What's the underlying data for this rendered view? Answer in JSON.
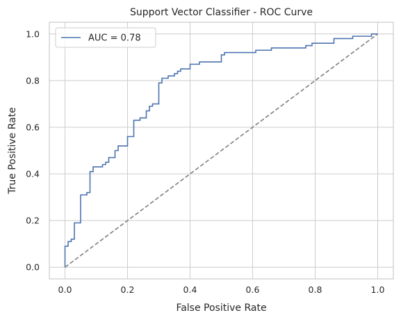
{
  "chart_data": {
    "type": "line",
    "title": "Support Vector Classifier - ROC Curve",
    "xlabel": "False Positive Rate",
    "ylabel": "True Positive Rate",
    "xlim": [
      -0.05,
      1.05
    ],
    "ylim": [
      -0.05,
      1.05
    ],
    "xticks": [
      0.0,
      0.2,
      0.4,
      0.6,
      0.8,
      1.0
    ],
    "xtick_labels": [
      "0.0",
      "0.2",
      "0.4",
      "0.6",
      "0.8",
      "1.0"
    ],
    "yticks": [
      0.0,
      0.2,
      0.4,
      0.6,
      0.8,
      1.0
    ],
    "ytick_labels": [
      "0.0",
      "0.2",
      "0.4",
      "0.6",
      "0.8",
      "1.0"
    ],
    "grid": true,
    "legend_position": "top-left",
    "series": [
      {
        "name": "AUC = 0.78",
        "color": "#4c72b0",
        "style": "solid",
        "points": [
          [
            0.0,
            0.0
          ],
          [
            0.0,
            0.09
          ],
          [
            0.01,
            0.09
          ],
          [
            0.01,
            0.11
          ],
          [
            0.02,
            0.11
          ],
          [
            0.02,
            0.12
          ],
          [
            0.03,
            0.12
          ],
          [
            0.03,
            0.19
          ],
          [
            0.05,
            0.19
          ],
          [
            0.05,
            0.31
          ],
          [
            0.07,
            0.31
          ],
          [
            0.07,
            0.32
          ],
          [
            0.08,
            0.32
          ],
          [
            0.08,
            0.41
          ],
          [
            0.09,
            0.41
          ],
          [
            0.09,
            0.43
          ],
          [
            0.12,
            0.43
          ],
          [
            0.12,
            0.44
          ],
          [
            0.13,
            0.44
          ],
          [
            0.13,
            0.45
          ],
          [
            0.14,
            0.45
          ],
          [
            0.14,
            0.47
          ],
          [
            0.16,
            0.47
          ],
          [
            0.16,
            0.5
          ],
          [
            0.17,
            0.5
          ],
          [
            0.17,
            0.52
          ],
          [
            0.2,
            0.52
          ],
          [
            0.2,
            0.56
          ],
          [
            0.22,
            0.56
          ],
          [
            0.22,
            0.63
          ],
          [
            0.24,
            0.63
          ],
          [
            0.24,
            0.64
          ],
          [
            0.26,
            0.64
          ],
          [
            0.26,
            0.67
          ],
          [
            0.27,
            0.67
          ],
          [
            0.27,
            0.69
          ],
          [
            0.28,
            0.69
          ],
          [
            0.28,
            0.7
          ],
          [
            0.3,
            0.7
          ],
          [
            0.3,
            0.79
          ],
          [
            0.31,
            0.79
          ],
          [
            0.31,
            0.81
          ],
          [
            0.33,
            0.81
          ],
          [
            0.33,
            0.82
          ],
          [
            0.35,
            0.82
          ],
          [
            0.35,
            0.83
          ],
          [
            0.36,
            0.83
          ],
          [
            0.36,
            0.84
          ],
          [
            0.37,
            0.84
          ],
          [
            0.37,
            0.85
          ],
          [
            0.4,
            0.85
          ],
          [
            0.4,
            0.87
          ],
          [
            0.43,
            0.87
          ],
          [
            0.43,
            0.88
          ],
          [
            0.5,
            0.88
          ],
          [
            0.5,
            0.91
          ],
          [
            0.51,
            0.91
          ],
          [
            0.51,
            0.92
          ],
          [
            0.61,
            0.92
          ],
          [
            0.61,
            0.93
          ],
          [
            0.66,
            0.93
          ],
          [
            0.66,
            0.94
          ],
          [
            0.77,
            0.94
          ],
          [
            0.77,
            0.95
          ],
          [
            0.79,
            0.95
          ],
          [
            0.79,
            0.96
          ],
          [
            0.86,
            0.96
          ],
          [
            0.86,
            0.98
          ],
          [
            0.92,
            0.98
          ],
          [
            0.92,
            0.99
          ],
          [
            0.98,
            0.99
          ],
          [
            0.98,
            1.0
          ],
          [
            1.0,
            1.0
          ]
        ]
      },
      {
        "color": "#7f7f7f",
        "style": "dashed",
        "points": [
          [
            0.0,
            0.0
          ],
          [
            1.0,
            1.0
          ]
        ]
      }
    ],
    "legend": [
      {
        "label": "AUC = 0.78",
        "color": "#4c72b0"
      }
    ]
  }
}
